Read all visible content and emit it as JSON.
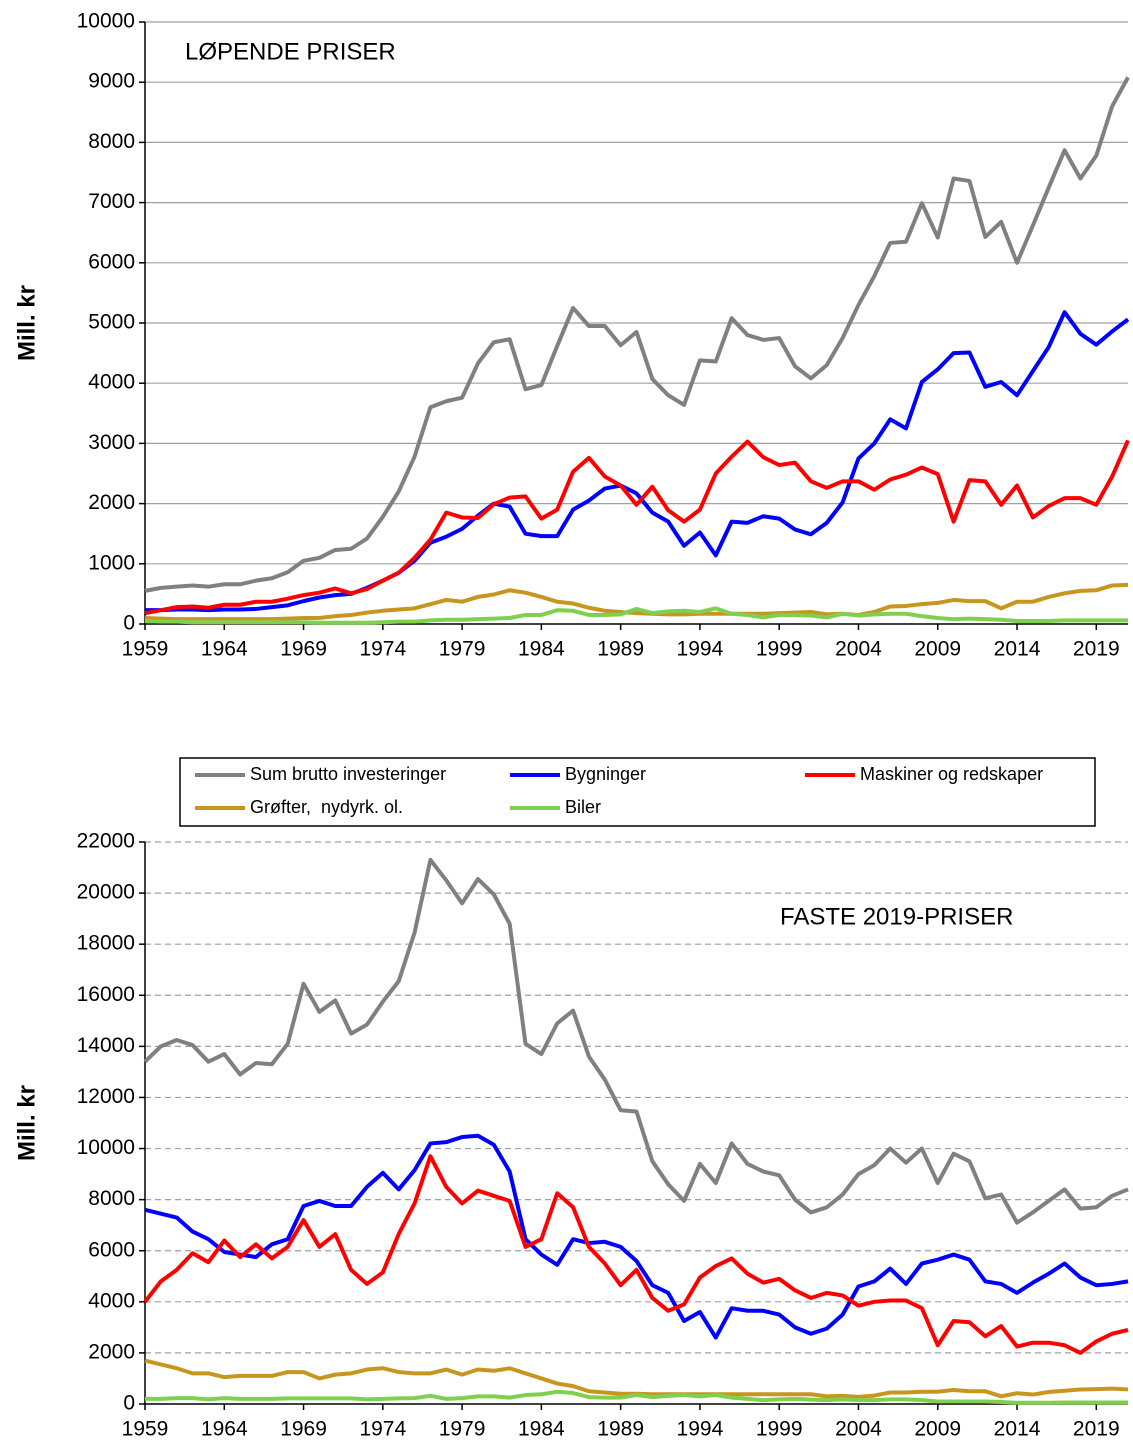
{
  "chart_data": [
    {
      "type": "line",
      "title": "LØPENDE PRISER",
      "ylabel": "Mill. kr",
      "grid": true,
      "grid_style": "solid",
      "x": [
        1959,
        1960,
        1961,
        1962,
        1963,
        1964,
        1965,
        1966,
        1967,
        1968,
        1969,
        1970,
        1971,
        1972,
        1973,
        1974,
        1975,
        1976,
        1977,
        1978,
        1979,
        1980,
        1981,
        1982,
        1983,
        1984,
        1985,
        1986,
        1987,
        1988,
        1989,
        1990,
        1991,
        1992,
        1993,
        1994,
        1995,
        1996,
        1997,
        1998,
        1999,
        2000,
        2001,
        2002,
        2003,
        2004,
        2005,
        2006,
        2007,
        2008,
        2009,
        2010,
        2011,
        2012,
        2013,
        2014,
        2015,
        2016,
        2017,
        2018,
        2019,
        2020,
        2021
      ],
      "xlim": [
        1959,
        2021
      ],
      "xticks": [
        1959,
        1964,
        1969,
        1974,
        1979,
        1984,
        1989,
        1994,
        1999,
        2004,
        2009,
        2014,
        2019
      ],
      "ylim": [
        0,
        10000
      ],
      "yticks": [
        0,
        1000,
        2000,
        3000,
        4000,
        5000,
        6000,
        7000,
        8000,
        9000,
        10000
      ],
      "series": [
        {
          "color": "#808080",
          "values": [
            550,
            600,
            620,
            640,
            620,
            660,
            660,
            720,
            760,
            860,
            1050,
            1100,
            1230,
            1250,
            1420,
            1780,
            2200,
            2780,
            3600,
            3700,
            3760,
            4330,
            4680,
            4730,
            3900,
            3970,
            4620,
            5250,
            4950,
            4950,
            4630,
            4850,
            4070,
            3800,
            3640,
            4380,
            4360,
            5080,
            4800,
            4720,
            4750,
            4280,
            4080,
            4300,
            4750,
            5300,
            5780,
            6330,
            6350,
            6990,
            6420,
            7400,
            7360,
            6430,
            6680,
            6000,
            6620,
            7250,
            7870,
            7400,
            7780,
            8600,
            9080
          ]
        },
        {
          "color": "#0000ff",
          "values": [
            230,
            230,
            240,
            240,
            230,
            240,
            240,
            250,
            280,
            310,
            380,
            440,
            480,
            500,
            600,
            720,
            850,
            1050,
            1350,
            1450,
            1580,
            1800,
            2000,
            1950,
            1500,
            1460,
            1460,
            1900,
            2050,
            2250,
            2300,
            2170,
            1850,
            1700,
            1300,
            1520,
            1140,
            1700,
            1680,
            1790,
            1750,
            1570,
            1490,
            1680,
            2020,
            2750,
            3000,
            3400,
            3250,
            4020,
            4230,
            4500,
            4510,
            3940,
            4020,
            3800,
            4200,
            4600,
            5180,
            4820,
            4640,
            4860,
            5060
          ]
        },
        {
          "color": "#ff0000",
          "values": [
            180,
            230,
            280,
            290,
            270,
            320,
            320,
            370,
            370,
            420,
            480,
            520,
            590,
            510,
            580,
            720,
            850,
            1100,
            1400,
            1850,
            1770,
            1760,
            1990,
            2100,
            2120,
            1750,
            1900,
            2530,
            2760,
            2450,
            2300,
            1980,
            2280,
            1890,
            1700,
            1900,
            2500,
            2780,
            3030,
            2770,
            2640,
            2680,
            2370,
            2260,
            2370,
            2370,
            2230,
            2400,
            2480,
            2600,
            2490,
            1700,
            2390,
            2370,
            1980,
            2300,
            1770,
            1960,
            2090,
            2090,
            1980,
            2450,
            3050
          ]
        },
        {
          "color": "#c8961e",
          "values": [
            100,
            90,
            80,
            80,
            80,
            80,
            80,
            80,
            80,
            90,
            100,
            100,
            130,
            150,
            190,
            220,
            240,
            260,
            330,
            400,
            370,
            450,
            490,
            560,
            520,
            450,
            370,
            340,
            270,
            220,
            200,
            180,
            170,
            160,
            160,
            170,
            170,
            170,
            170,
            170,
            180,
            190,
            200,
            160,
            170,
            150,
            200,
            290,
            300,
            330,
            350,
            400,
            380,
            380,
            260,
            370,
            370,
            450,
            510,
            550,
            560,
            640,
            650
          ]
        },
        {
          "color": "#80d050",
          "values": [
            50,
            40,
            40,
            30,
            30,
            30,
            30,
            30,
            30,
            30,
            30,
            20,
            20,
            20,
            20,
            30,
            40,
            40,
            60,
            70,
            70,
            80,
            90,
            100,
            150,
            150,
            230,
            220,
            150,
            150,
            160,
            250,
            180,
            210,
            220,
            200,
            260,
            170,
            150,
            110,
            150,
            150,
            140,
            110,
            170,
            140,
            160,
            170,
            170,
            130,
            100,
            80,
            90,
            80,
            70,
            50,
            50,
            50,
            60,
            60,
            60,
            60,
            60
          ]
        }
      ]
    },
    {
      "type": "line",
      "title": "FASTE 2019-PRISER",
      "ylabel": "Mill. kr",
      "grid": true,
      "grid_style": "dashed",
      "x": [
        1959,
        1960,
        1961,
        1962,
        1963,
        1964,
        1965,
        1966,
        1967,
        1968,
        1969,
        1970,
        1971,
        1972,
        1973,
        1974,
        1975,
        1976,
        1977,
        1978,
        1979,
        1980,
        1981,
        1982,
        1983,
        1984,
        1985,
        1986,
        1987,
        1988,
        1989,
        1990,
        1991,
        1992,
        1993,
        1994,
        1995,
        1996,
        1997,
        1998,
        1999,
        2000,
        2001,
        2002,
        2003,
        2004,
        2005,
        2006,
        2007,
        2008,
        2009,
        2010,
        2011,
        2012,
        2013,
        2014,
        2015,
        2016,
        2017,
        2018,
        2019,
        2020,
        2021
      ],
      "xlim": [
        1959,
        2021
      ],
      "xticks": [
        1959,
        1964,
        1969,
        1974,
        1979,
        1984,
        1989,
        1994,
        1999,
        2004,
        2009,
        2014,
        2019
      ],
      "ylim": [
        0,
        22000
      ],
      "yticks": [
        0,
        2000,
        4000,
        6000,
        8000,
        10000,
        12000,
        14000,
        16000,
        18000,
        20000,
        22000
      ],
      "series": [
        {
          "name": "Sum brutto investeringer",
          "color": "#808080",
          "values": [
            13400,
            14000,
            14250,
            14050,
            13400,
            13700,
            12900,
            13350,
            13300,
            14100,
            16450,
            15350,
            15800,
            14500,
            14850,
            15750,
            16550,
            18450,
            21300,
            20500,
            19600,
            20550,
            19950,
            18800,
            14100,
            13700,
            14900,
            15400,
            13600,
            12700,
            11500,
            11450,
            9500,
            8600,
            7950,
            9400,
            8650,
            10200,
            9400,
            9100,
            8950,
            8000,
            7500,
            7700,
            8200,
            9000,
            9350,
            10000,
            9450,
            10000,
            8650,
            9800,
            9500,
            8050,
            8200,
            7100,
            7500,
            7950,
            8400,
            7650,
            7700,
            8150,
            8400
          ]
        },
        {
          "name": "Bygninger",
          "color": "#0000ff",
          "values": [
            7600,
            7450,
            7300,
            6750,
            6450,
            5950,
            5850,
            5750,
            6250,
            6450,
            7750,
            7950,
            7750,
            7750,
            8500,
            9050,
            8400,
            9150,
            10200,
            10250,
            10450,
            10500,
            10150,
            9100,
            6450,
            5850,
            5450,
            6450,
            6300,
            6350,
            6150,
            5600,
            4650,
            4350,
            3250,
            3600,
            2600,
            3750,
            3650,
            3650,
            3500,
            3000,
            2750,
            2950,
            3500,
            4600,
            4800,
            5300,
            4700,
            5500,
            5650,
            5850,
            5650,
            4800,
            4700,
            4350,
            4750,
            5100,
            5500,
            4950,
            4650,
            4700,
            4800
          ]
        },
        {
          "name": "Maskiner og redskaper",
          "color": "#ff0000",
          "values": [
            4000,
            4800,
            5250,
            5900,
            5550,
            6400,
            5750,
            6250,
            5700,
            6150,
            7200,
            6150,
            6650,
            5250,
            4700,
            5150,
            6650,
            7850,
            9700,
            8500,
            7850,
            8350,
            8150,
            7950,
            6150,
            6450,
            8250,
            7700,
            6150,
            5500,
            4650,
            5250,
            4150,
            3650,
            3900,
            4950,
            5400,
            5700,
            5100,
            4750,
            4900,
            4450,
            4150,
            4350,
            4250,
            3850,
            4000,
            4050,
            4050,
            3750,
            2300,
            3250,
            3200,
            2650,
            3050,
            2250,
            2400,
            2400,
            2300,
            2000,
            2450,
            2750,
            2900
          ]
        },
        {
          "name": "Grøfter,  nydyrk. ol.",
          "color": "#c8961e",
          "values": [
            1700,
            1550,
            1400,
            1200,
            1200,
            1050,
            1100,
            1100,
            1100,
            1250,
            1250,
            1000,
            1150,
            1200,
            1350,
            1400,
            1250,
            1200,
            1200,
            1350,
            1150,
            1350,
            1300,
            1400,
            1200,
            1000,
            800,
            700,
            500,
            450,
            400,
            400,
            380,
            380,
            380,
            380,
            380,
            380,
            380,
            380,
            380,
            380,
            380,
            300,
            320,
            280,
            330,
            450,
            450,
            480,
            480,
            550,
            500,
            500,
            300,
            420,
            370,
            470,
            520,
            570,
            580,
            600,
            570
          ]
        },
        {
          "name": "Biler",
          "color": "#80d050",
          "values": [
            200,
            200,
            230,
            230,
            180,
            230,
            200,
            200,
            200,
            220,
            220,
            220,
            220,
            220,
            180,
            200,
            220,
            230,
            320,
            200,
            230,
            300,
            300,
            250,
            350,
            380,
            480,
            430,
            270,
            250,
            250,
            350,
            270,
            320,
            350,
            300,
            350,
            250,
            200,
            150,
            180,
            200,
            170,
            150,
            180,
            150,
            150,
            180,
            180,
            150,
            100,
            100,
            100,
            100,
            80,
            50,
            50,
            50,
            60,
            60,
            60,
            60,
            60
          ]
        }
      ]
    }
  ]
}
